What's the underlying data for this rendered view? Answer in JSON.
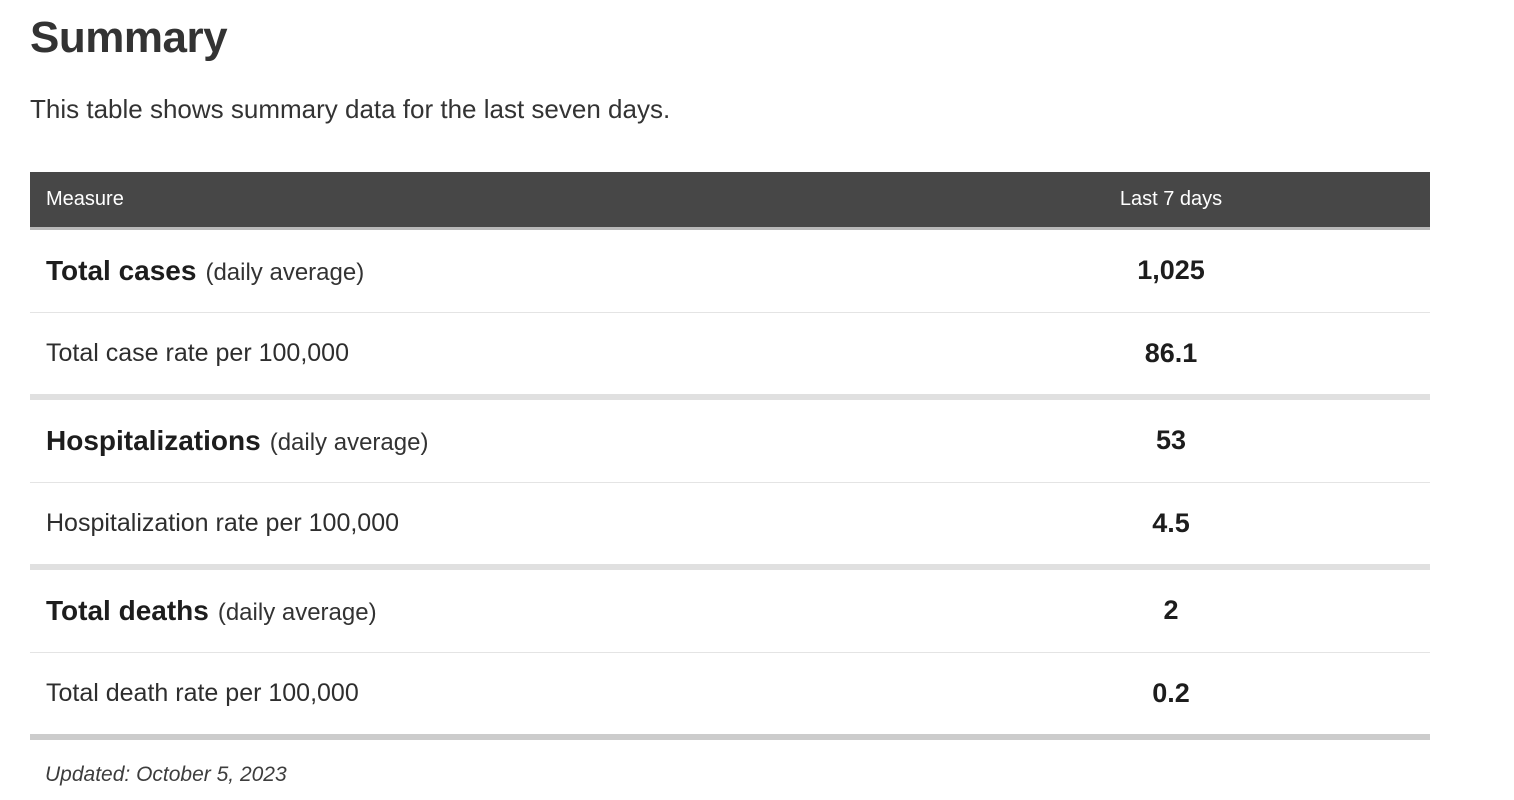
{
  "page": {
    "title": "Summary",
    "subtitle": "This table shows summary data for the last seven days.",
    "updated": "Updated: October 5, 2023"
  },
  "table": {
    "columns": {
      "measure": "Measure",
      "value": "Last 7 days"
    },
    "rows": [
      {
        "name": "Total cases",
        "qualifier": "(daily average)",
        "value": "1,025"
      },
      {
        "name": "Total case rate per 100,000",
        "qualifier": "",
        "value": "86.1"
      },
      {
        "name": "Hospitalizations",
        "qualifier": "(daily average)",
        "value": "53"
      },
      {
        "name": "Hospitalization rate per 100,000",
        "qualifier": "",
        "value": "4.5"
      },
      {
        "name": "Total deaths",
        "qualifier": "(daily average)",
        "value": "2"
      },
      {
        "name": "Total death rate per 100,000",
        "qualifier": "",
        "value": "0.2"
      }
    ],
    "colors": {
      "header_bg": "#474747",
      "header_text": "#ffffff",
      "separator_thin": "#e4e4e4",
      "separator_thick": "#e0e0e0",
      "bottom_border": "#cccccc"
    }
  },
  "chart_data": {
    "type": "table",
    "title": "Summary",
    "subtitle": "This table shows summary data for the last seven days.",
    "columns": [
      "Measure",
      "Last 7 days"
    ],
    "rows": [
      [
        "Total cases (daily average)",
        "1,025"
      ],
      [
        "Total case rate per 100,000",
        "86.1"
      ],
      [
        "Hospitalizations (daily average)",
        "53"
      ],
      [
        "Hospitalization rate per 100,000",
        "4.5"
      ],
      [
        "Total deaths (daily average)",
        "2"
      ],
      [
        "Total death rate per 100,000",
        "0.2"
      ]
    ],
    "values": [
      1025,
      86.1,
      53,
      4.5,
      2,
      0.2
    ],
    "updated": "Updated: October 5, 2023"
  }
}
